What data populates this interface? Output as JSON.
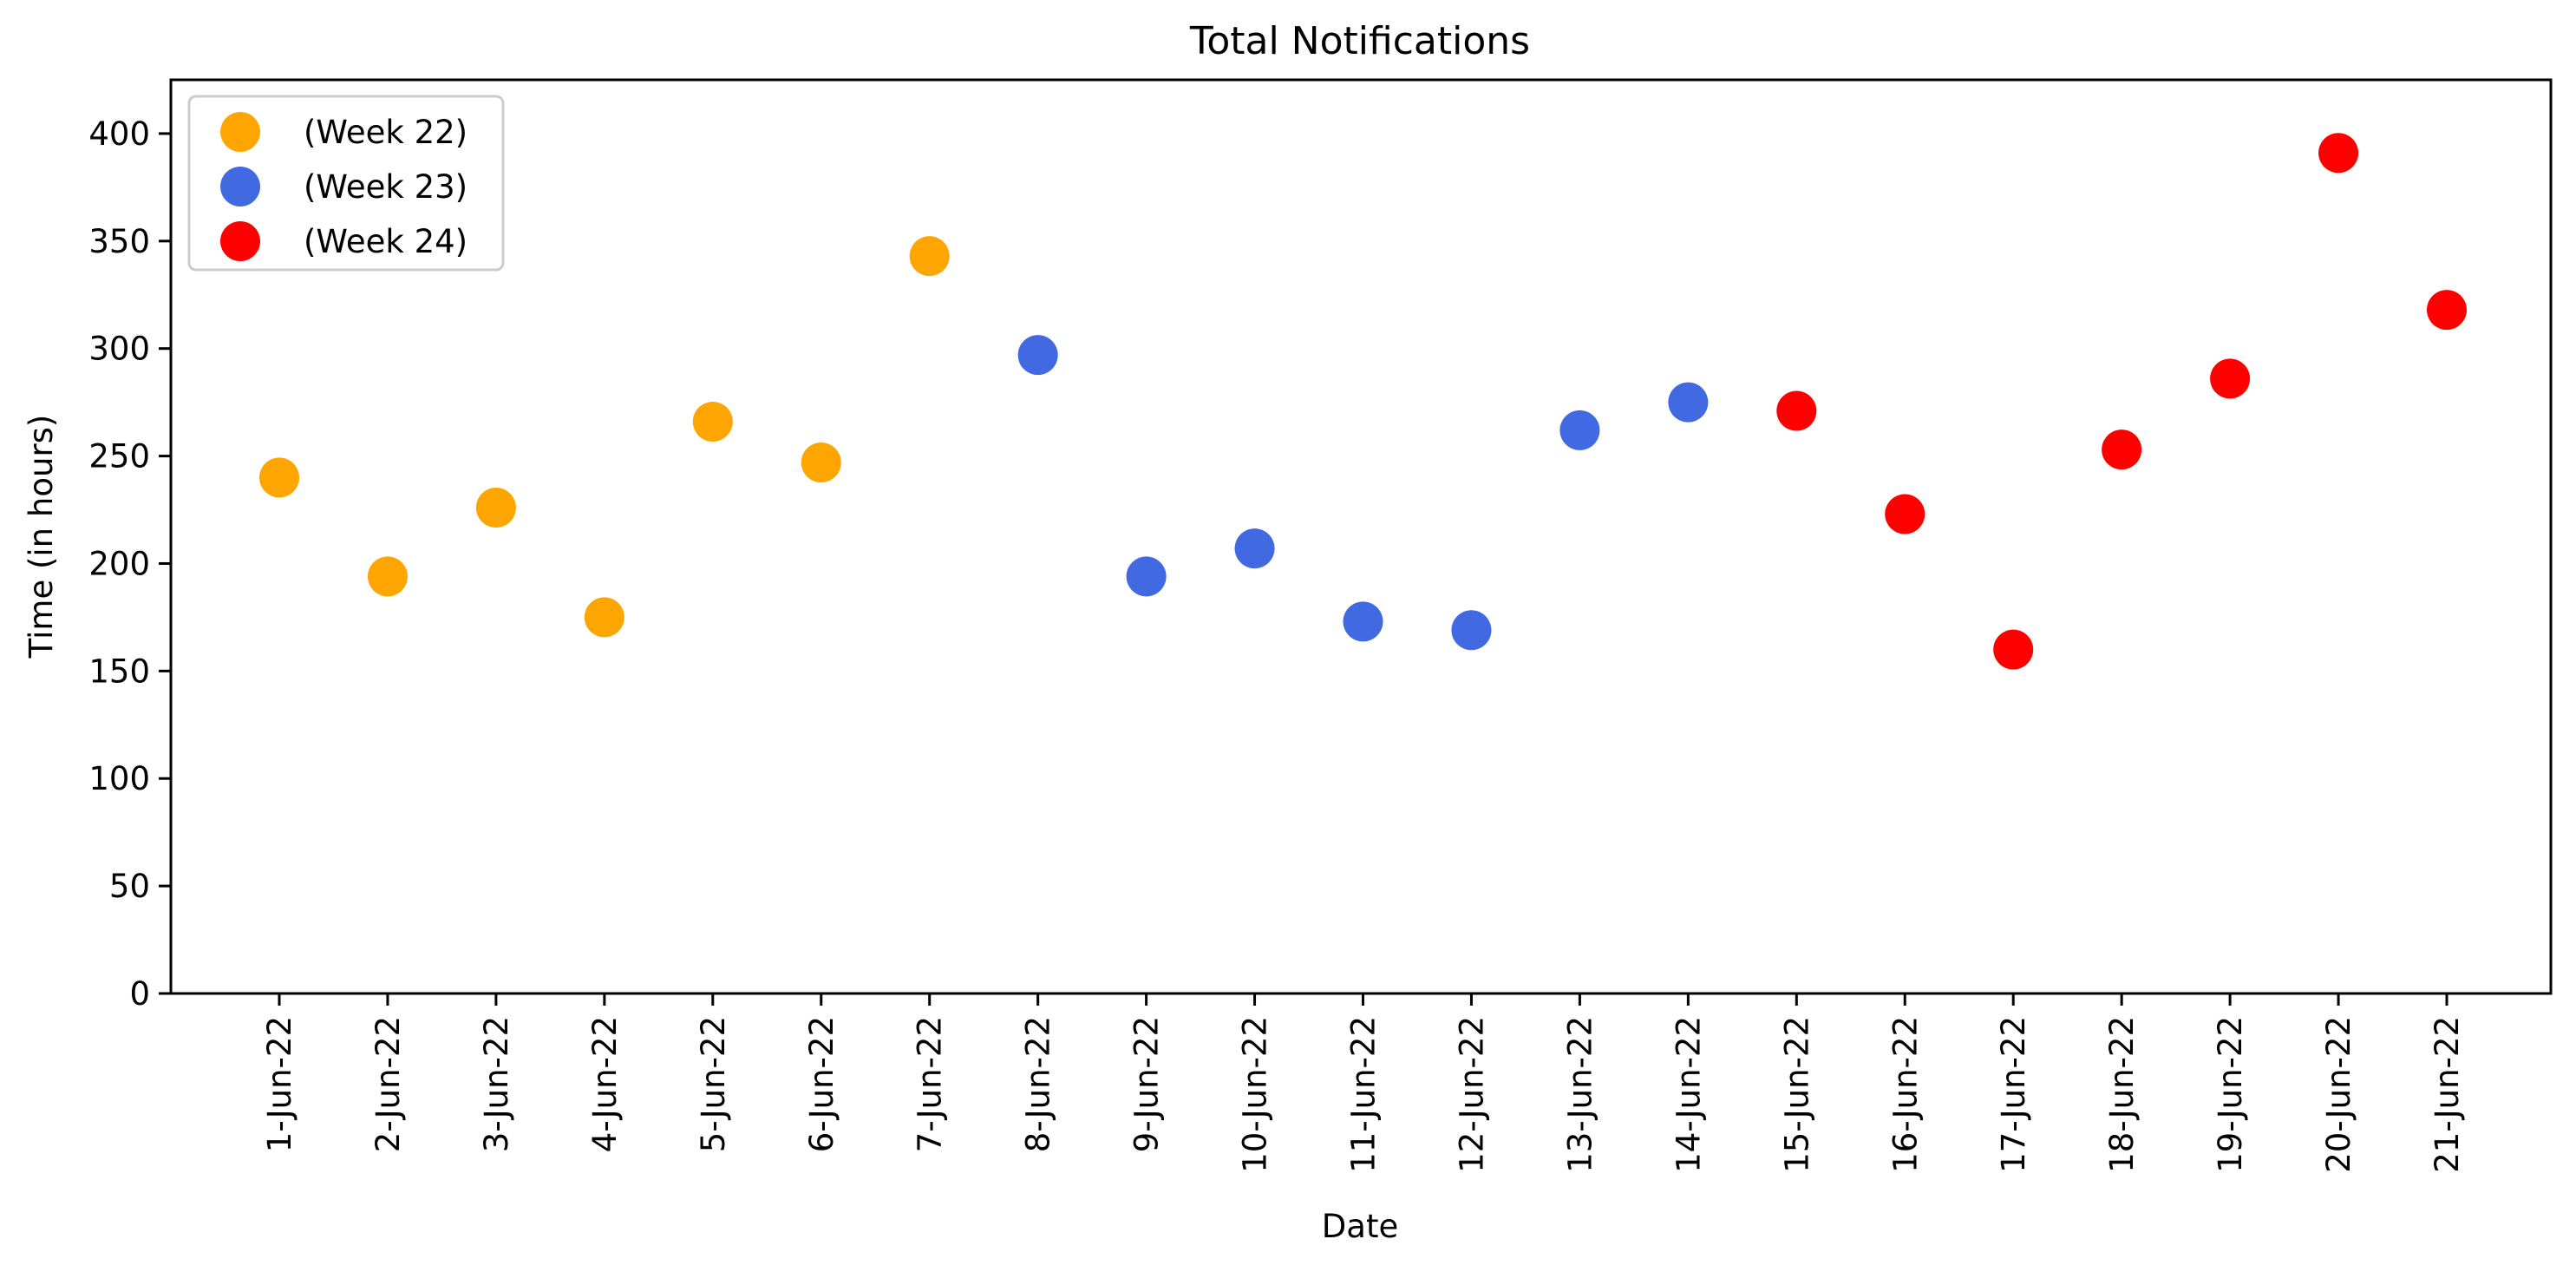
{
  "chart_data": {
    "type": "scatter",
    "title": "Total Notifications",
    "xlabel": "Date",
    "ylabel": "Time (in hours)",
    "ylim": [
      0,
      425
    ],
    "yticks": [
      0,
      50,
      100,
      150,
      200,
      250,
      300,
      350,
      400
    ],
    "grid": false,
    "legend_position": "top-left",
    "categories": [
      "1-Jun-22",
      "2-Jun-22",
      "3-Jun-22",
      "4-Jun-22",
      "5-Jun-22",
      "6-Jun-22",
      "7-Jun-22",
      "8-Jun-22",
      "9-Jun-22",
      "10-Jun-22",
      "11-Jun-22",
      "12-Jun-22",
      "13-Jun-22",
      "14-Jun-22",
      "15-Jun-22",
      "16-Jun-22",
      "17-Jun-22",
      "18-Jun-22",
      "19-Jun-22",
      "20-Jun-22",
      "21-Jun-22"
    ],
    "series": [
      {
        "name": "(Week 22)",
        "color": "#FFA500",
        "x": [
          "1-Jun-22",
          "2-Jun-22",
          "3-Jun-22",
          "4-Jun-22",
          "5-Jun-22",
          "6-Jun-22",
          "7-Jun-22"
        ],
        "values": [
          240,
          194,
          226,
          175,
          266,
          247,
          343
        ]
      },
      {
        "name": "(Week 23)",
        "color": "#4169E1",
        "x": [
          "8-Jun-22",
          "9-Jun-22",
          "10-Jun-22",
          "11-Jun-22",
          "12-Jun-22",
          "13-Jun-22",
          "14-Jun-22"
        ],
        "values": [
          297,
          194,
          207,
          173,
          169,
          262,
          275
        ]
      },
      {
        "name": "(Week 24)",
        "color": "#FF0000",
        "x": [
          "15-Jun-22",
          "16-Jun-22",
          "17-Jun-22",
          "18-Jun-22",
          "19-Jun-22",
          "20-Jun-22",
          "21-Jun-22"
        ],
        "values": [
          271,
          223,
          160,
          253,
          286,
          391,
          318
        ]
      }
    ]
  }
}
